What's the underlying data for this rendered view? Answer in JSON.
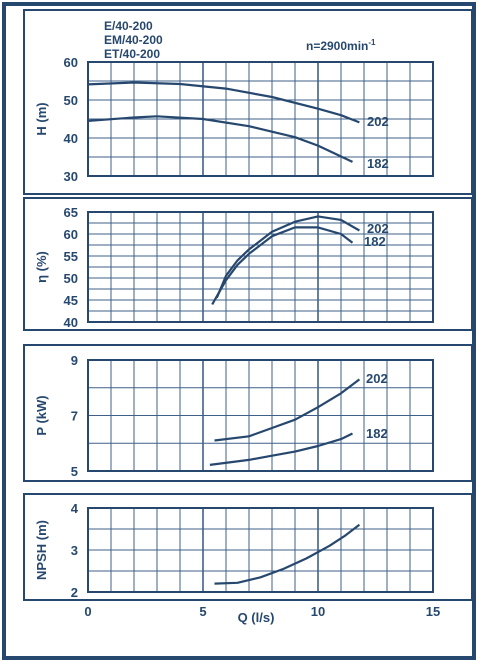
{
  "colors": {
    "ink": "#27486e",
    "grid": "#3f6189",
    "background": "#ffffff"
  },
  "header": {
    "models": [
      "E/40-200",
      "EM/40-200",
      "ET/40-200"
    ],
    "speed_label": "n=2900min",
    "speed_exponent": "-1"
  },
  "x_axis": {
    "label": "Q (l/s)",
    "ticks": [
      "0",
      "5",
      "10",
      "15"
    ]
  },
  "chart_data": [
    {
      "type": "line",
      "ylabel": "H (m)",
      "xlim": [
        0,
        15
      ],
      "ylim": [
        30,
        60
      ],
      "yticks": [
        30,
        40,
        50,
        60
      ],
      "series": [
        {
          "name": "202",
          "points": [
            [
              0,
              54.1
            ],
            [
              2,
              54.6
            ],
            [
              4,
              54.2
            ],
            [
              6,
              53.0
            ],
            [
              8,
              50.8
            ],
            [
              10,
              47.7
            ],
            [
              11,
              46.0
            ],
            [
              11.8,
              44.1
            ]
          ]
        },
        {
          "name": "182",
          "points": [
            [
              0,
              44.5
            ],
            [
              2,
              45.4
            ],
            [
              3,
              45.7
            ],
            [
              5,
              45.0
            ],
            [
              7,
              43.1
            ],
            [
              9,
              40.2
            ],
            [
              10,
              38.0
            ],
            [
              11.5,
              33.7
            ]
          ]
        }
      ]
    },
    {
      "type": "line",
      "ylabel": "η (%)",
      "xlim": [
        0,
        15
      ],
      "ylim": [
        40,
        65
      ],
      "yticks": [
        40,
        45,
        50,
        55,
        60,
        65
      ],
      "series": [
        {
          "name": "202",
          "points": [
            [
              5.6,
              45.5
            ],
            [
              6,
              50.5
            ],
            [
              6.5,
              54.0
            ],
            [
              7,
              56.5
            ],
            [
              8,
              60.5
            ],
            [
              9,
              62.8
            ],
            [
              10,
              64.0
            ],
            [
              11,
              63.2
            ],
            [
              11.8,
              60.8
            ]
          ]
        },
        {
          "name": "182",
          "points": [
            [
              5.4,
              44.0
            ],
            [
              6,
              49.5
            ],
            [
              6.5,
              53.0
            ],
            [
              7,
              55.5
            ],
            [
              8,
              59.5
            ],
            [
              9,
              61.5
            ],
            [
              10,
              61.5
            ],
            [
              11,
              60.0
            ],
            [
              11.5,
              58.0
            ]
          ]
        }
      ]
    },
    {
      "type": "line",
      "ylabel": "P (kW)",
      "xlim": [
        0,
        15
      ],
      "ylim": [
        5,
        9
      ],
      "yticks": [
        5,
        7,
        9
      ],
      "series": [
        {
          "name": "202",
          "points": [
            [
              5.5,
              6.1
            ],
            [
              7,
              6.25
            ],
            [
              8,
              6.55
            ],
            [
              9,
              6.85
            ],
            [
              10,
              7.3
            ],
            [
              11,
              7.8
            ],
            [
              11.8,
              8.3
            ]
          ]
        },
        {
          "name": "182",
          "points": [
            [
              5.3,
              5.22
            ],
            [
              7,
              5.4
            ],
            [
              8,
              5.55
            ],
            [
              9,
              5.7
            ],
            [
              10,
              5.9
            ],
            [
              11,
              6.15
            ],
            [
              11.5,
              6.35
            ]
          ]
        }
      ]
    },
    {
      "type": "line",
      "ylabel": "NPSH (m)",
      "xlim": [
        0,
        15
      ],
      "ylim": [
        2,
        4
      ],
      "yticks": [
        2,
        3,
        4
      ],
      "series": [
        {
          "name": "",
          "points": [
            [
              5.5,
              2.2
            ],
            [
              6.5,
              2.22
            ],
            [
              7.5,
              2.35
            ],
            [
              8.5,
              2.55
            ],
            [
              9.5,
              2.8
            ],
            [
              10.5,
              3.1
            ],
            [
              11.2,
              3.35
            ],
            [
              11.8,
              3.6
            ]
          ]
        }
      ]
    }
  ]
}
